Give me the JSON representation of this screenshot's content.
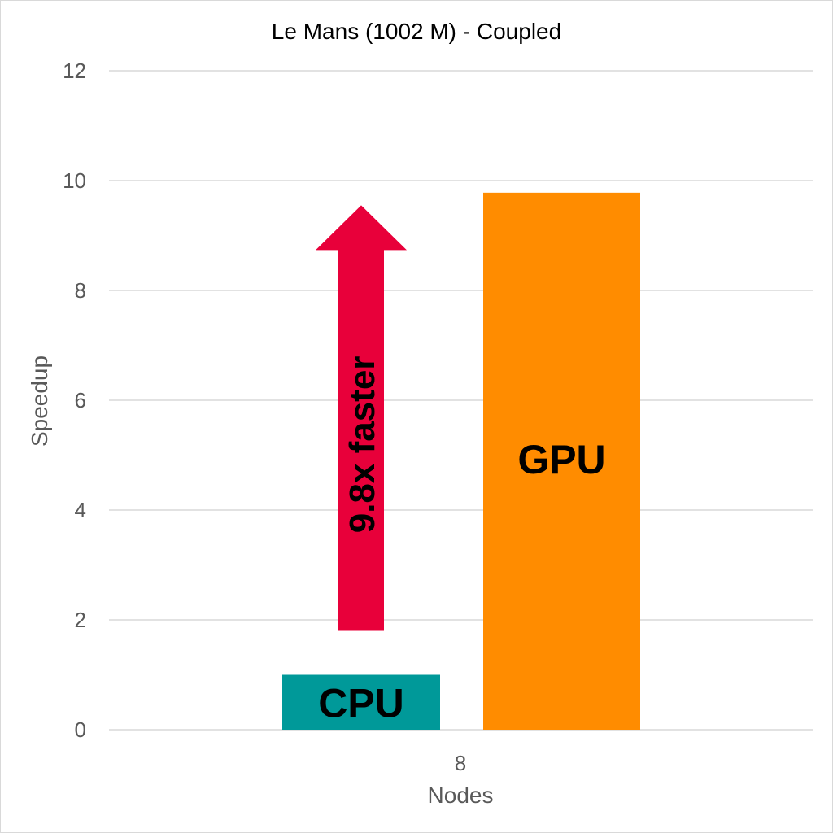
{
  "chart_data": {
    "type": "bar",
    "title": "Le Mans (1002 M) - Coupled",
    "xlabel": "Nodes",
    "ylabel": "Speedup",
    "categories": [
      "8"
    ],
    "series": [
      {
        "name": "CPU",
        "values": [
          1.0
        ],
        "color": "#009999"
      },
      {
        "name": "GPU",
        "values": [
          9.78
        ],
        "color": "#ff8c00"
      }
    ],
    "ylim": [
      0,
      12
    ],
    "yticks": [
      0,
      2,
      4,
      6,
      8,
      10,
      12
    ],
    "grid": true,
    "annotation": {
      "text": "9.8x faster",
      "color": "#e8003a",
      "from": 1.8,
      "to": 9.55
    }
  }
}
